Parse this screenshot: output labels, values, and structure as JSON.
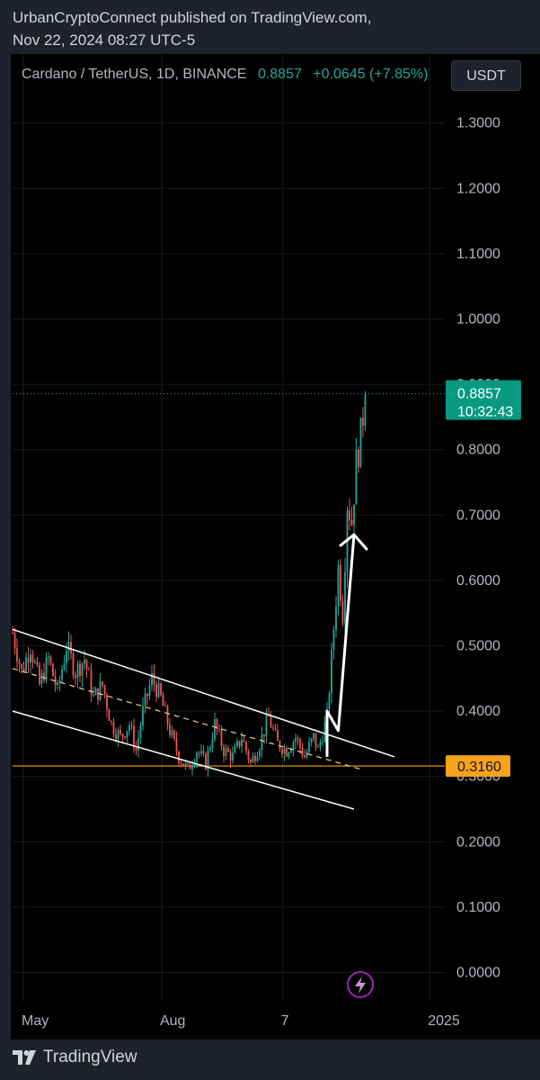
{
  "header": {
    "published": "UrbanCryptoConnect published on TradingView.com,",
    "timestamp": "Nov 22, 2024 08:27 UTC-5"
  },
  "symbol": {
    "title": "Cardano / TetherUS, 1D, BINANCE",
    "price": "0.8857",
    "change": "+0.0645 (+7.85%)"
  },
  "currency_button": "USDT",
  "footer": {
    "brand": "TradingView"
  },
  "colors": {
    "up": "#26a69a",
    "down": "#ef5350",
    "support": "#f7a21b",
    "trendline": "#ffffff"
  },
  "chart_data": {
    "type": "candlestick",
    "yaxis": {
      "ticks": [
        "1.3000",
        "1.2000",
        "1.1000",
        "1.0000",
        "0.9000",
        "0.8000",
        "0.7000",
        "0.6000",
        "0.5000",
        "0.4000",
        "0.3000",
        "0.2000",
        "0.1000",
        "0.0000"
      ],
      "range": [
        -0.04,
        1.38
      ]
    },
    "xaxis": {
      "ticks": [
        {
          "label": "May",
          "pos": 0.05
        },
        {
          "label": "Aug",
          "pos": 0.37
        },
        {
          "label": "7",
          "pos": 0.65
        },
        {
          "label": "2025",
          "pos": 0.99
        }
      ]
    },
    "price_label": {
      "value": 0.8857,
      "text": "0.8857",
      "countdown": "10:32:43"
    },
    "support_label": {
      "value": 0.316,
      "text": "0.3160"
    },
    "path_points": [
      [
        0,
        0.52
      ],
      [
        4,
        0.46
      ],
      [
        8,
        0.5
      ],
      [
        12,
        0.44
      ],
      [
        16,
        0.48
      ],
      [
        20,
        0.43
      ],
      [
        24,
        0.5
      ],
      [
        28,
        0.46
      ],
      [
        32,
        0.48
      ],
      [
        36,
        0.42
      ],
      [
        40,
        0.44
      ],
      [
        44,
        0.38
      ],
      [
        48,
        0.36
      ],
      [
        52,
        0.38
      ],
      [
        55,
        0.34
      ],
      [
        58,
        0.4
      ],
      [
        62,
        0.45
      ],
      [
        66,
        0.42
      ],
      [
        70,
        0.37
      ],
      [
        74,
        0.33
      ],
      [
        78,
        0.31
      ],
      [
        82,
        0.34
      ],
      [
        86,
        0.32
      ],
      [
        90,
        0.38
      ],
      [
        94,
        0.34
      ],
      [
        98,
        0.33
      ],
      [
        102,
        0.36
      ],
      [
        106,
        0.32
      ],
      [
        110,
        0.35
      ],
      [
        114,
        0.39
      ],
      [
        118,
        0.35
      ],
      [
        122,
        0.34
      ],
      [
        126,
        0.36
      ],
      [
        130,
        0.33
      ],
      [
        134,
        0.36
      ],
      [
        136,
        0.34
      ],
      [
        140,
        0.39
      ],
      [
        142,
        0.48
      ],
      [
        145,
        0.62
      ],
      [
        147,
        0.55
      ],
      [
        149,
        0.72
      ],
      [
        151,
        0.69
      ],
      [
        153,
        0.78
      ],
      [
        155,
        0.82
      ],
      [
        157,
        0.8857
      ]
    ],
    "trend_upper": [
      [
        0,
        0.525
      ],
      [
        170,
        0.33
      ]
    ],
    "trend_lower": [
      [
        0,
        0.4
      ],
      [
        152,
        0.25
      ]
    ],
    "trend_mid": [
      [
        0,
        0.465
      ],
      [
        156,
        0.31
      ]
    ],
    "arrow": [
      [
        140,
        0.33
      ],
      [
        140,
        0.4
      ],
      [
        145,
        0.37
      ],
      [
        152,
        0.67
      ]
    ],
    "support_line": 0.316
  }
}
